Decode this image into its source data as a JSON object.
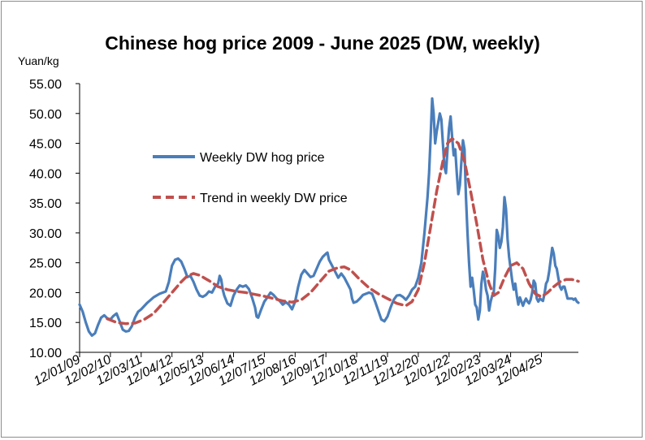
{
  "chart_data": {
    "type": "line",
    "title": "Chinese hog price 2009 - June 2025 (DW, weekly)",
    "ylabel": "Yuan/kg",
    "xlabel": "",
    "ylim": [
      10,
      55
    ],
    "yticks": [
      "10.00",
      "15.00",
      "20.00",
      "25.00",
      "30.00",
      "35.00",
      "40.00",
      "45.00",
      "50.00",
      "55.00"
    ],
    "xticks": [
      "12/01/09",
      "12/02/10",
      "12/03/11",
      "12/04/12",
      "12/05/13",
      "12/06/14",
      "12/07/15",
      "12/08/16",
      "12/09/17",
      "12/10/18",
      "12/11/19",
      "12/12/20",
      "12/01/22",
      "12/02/23",
      "12/03/24",
      "12/04/25"
    ],
    "x_range": [
      0,
      16.2
    ],
    "legend_position": "left-center",
    "grid": false,
    "series": [
      {
        "name": "Weekly DW hog price",
        "color": "#4a7ebb",
        "style": "solid",
        "points": [
          [
            0.0,
            18.0
          ],
          [
            0.1,
            16.8
          ],
          [
            0.2,
            15.0
          ],
          [
            0.3,
            13.5
          ],
          [
            0.4,
            12.8
          ],
          [
            0.5,
            13.2
          ],
          [
            0.6,
            14.6
          ],
          [
            0.7,
            15.8
          ],
          [
            0.8,
            16.2
          ],
          [
            0.9,
            15.7
          ],
          [
            1.0,
            15.5
          ],
          [
            1.1,
            16.1
          ],
          [
            1.2,
            16.5
          ],
          [
            1.3,
            15.2
          ],
          [
            1.4,
            13.8
          ],
          [
            1.5,
            13.5
          ],
          [
            1.6,
            13.6
          ],
          [
            1.7,
            14.4
          ],
          [
            1.8,
            15.8
          ],
          [
            1.9,
            16.8
          ],
          [
            2.0,
            17.2
          ],
          [
            2.2,
            18.3
          ],
          [
            2.4,
            19.2
          ],
          [
            2.6,
            19.8
          ],
          [
            2.8,
            20.2
          ],
          [
            2.9,
            21.8
          ],
          [
            3.0,
            24.5
          ],
          [
            3.1,
            25.5
          ],
          [
            3.2,
            25.7
          ],
          [
            3.3,
            25.2
          ],
          [
            3.4,
            24.0
          ],
          [
            3.5,
            22.6
          ],
          [
            3.6,
            22.8
          ],
          [
            3.7,
            21.8
          ],
          [
            3.8,
            20.5
          ],
          [
            3.9,
            19.5
          ],
          [
            4.0,
            19.3
          ],
          [
            4.1,
            19.6
          ],
          [
            4.2,
            20.2
          ],
          [
            4.3,
            20.0
          ],
          [
            4.4,
            21.0
          ],
          [
            4.5,
            21.5
          ],
          [
            4.55,
            22.8
          ],
          [
            4.6,
            22.2
          ],
          [
            4.65,
            20.5
          ],
          [
            4.7,
            19.5
          ],
          [
            4.8,
            18.2
          ],
          [
            4.9,
            17.8
          ],
          [
            5.0,
            19.5
          ],
          [
            5.1,
            20.5
          ],
          [
            5.2,
            21.2
          ],
          [
            5.3,
            21.0
          ],
          [
            5.4,
            21.2
          ],
          [
            5.5,
            20.6
          ],
          [
            5.6,
            19.2
          ],
          [
            5.7,
            17.5
          ],
          [
            5.75,
            16.0
          ],
          [
            5.8,
            15.8
          ],
          [
            5.9,
            17.2
          ],
          [
            6.0,
            18.5
          ],
          [
            6.1,
            19.2
          ],
          [
            6.2,
            20.0
          ],
          [
            6.3,
            19.6
          ],
          [
            6.4,
            19.0
          ],
          [
            6.5,
            18.6
          ],
          [
            6.6,
            18.0
          ],
          [
            6.7,
            18.4
          ],
          [
            6.8,
            18.0
          ],
          [
            6.9,
            17.2
          ],
          [
            7.0,
            18.5
          ],
          [
            7.1,
            21.0
          ],
          [
            7.2,
            23.0
          ],
          [
            7.3,
            23.8
          ],
          [
            7.4,
            23.2
          ],
          [
            7.5,
            22.6
          ],
          [
            7.6,
            22.8
          ],
          [
            7.7,
            24.0
          ],
          [
            7.8,
            25.2
          ],
          [
            7.9,
            26.0
          ],
          [
            8.0,
            26.5
          ],
          [
            8.05,
            26.7
          ],
          [
            8.1,
            25.5
          ],
          [
            8.2,
            24.5
          ],
          [
            8.3,
            23.5
          ],
          [
            8.4,
            22.5
          ],
          [
            8.5,
            23.2
          ],
          [
            8.6,
            22.5
          ],
          [
            8.7,
            21.5
          ],
          [
            8.8,
            20.5
          ],
          [
            8.85,
            19.0
          ],
          [
            8.9,
            18.3
          ],
          [
            9.0,
            18.5
          ],
          [
            9.1,
            19.0
          ],
          [
            9.2,
            19.6
          ],
          [
            9.3,
            19.8
          ],
          [
            9.4,
            20.0
          ],
          [
            9.5,
            19.8
          ],
          [
            9.6,
            18.5
          ],
          [
            9.7,
            17.0
          ],
          [
            9.8,
            15.5
          ],
          [
            9.9,
            15.2
          ],
          [
            10.0,
            16.0
          ],
          [
            10.1,
            17.5
          ],
          [
            10.2,
            18.8
          ],
          [
            10.3,
            19.5
          ],
          [
            10.4,
            19.6
          ],
          [
            10.5,
            19.3
          ],
          [
            10.6,
            18.8
          ],
          [
            10.7,
            19.5
          ],
          [
            10.8,
            20.5
          ],
          [
            10.9,
            21.0
          ],
          [
            11.0,
            22.5
          ],
          [
            11.1,
            25.0
          ],
          [
            11.2,
            30.0
          ],
          [
            11.3,
            36.0
          ],
          [
            11.35,
            40.0
          ],
          [
            11.4,
            46.0
          ],
          [
            11.45,
            52.5
          ],
          [
            11.5,
            50.0
          ],
          [
            11.55,
            45.0
          ],
          [
            11.6,
            47.0
          ],
          [
            11.65,
            48.5
          ],
          [
            11.7,
            50.0
          ],
          [
            11.75,
            49.0
          ],
          [
            11.8,
            45.0
          ],
          [
            11.85,
            41.0
          ],
          [
            11.9,
            40.0
          ],
          [
            11.95,
            44.0
          ],
          [
            12.0,
            47.5
          ],
          [
            12.05,
            49.5
          ],
          [
            12.1,
            46.0
          ],
          [
            12.15,
            43.0
          ],
          [
            12.2,
            44.0
          ],
          [
            12.25,
            40.0
          ],
          [
            12.3,
            36.5
          ],
          [
            12.35,
            38.0
          ],
          [
            12.4,
            42.0
          ],
          [
            12.45,
            45.5
          ],
          [
            12.5,
            44.0
          ],
          [
            12.55,
            36.0
          ],
          [
            12.6,
            30.0
          ],
          [
            12.65,
            25.0
          ],
          [
            12.7,
            21.0
          ],
          [
            12.75,
            22.5
          ],
          [
            12.8,
            20.5
          ],
          [
            12.85,
            18.0
          ],
          [
            12.9,
            17.5
          ],
          [
            12.95,
            15.5
          ],
          [
            13.0,
            17.0
          ],
          [
            13.05,
            21.5
          ],
          [
            13.1,
            23.5
          ],
          [
            13.15,
            22.5
          ],
          [
            13.2,
            20.5
          ],
          [
            13.25,
            19.5
          ],
          [
            13.3,
            17.0
          ],
          [
            13.35,
            18.5
          ],
          [
            13.4,
            19.5
          ],
          [
            13.45,
            20.0
          ],
          [
            13.5,
            24.0
          ],
          [
            13.55,
            30.5
          ],
          [
            13.6,
            29.5
          ],
          [
            13.65,
            27.5
          ],
          [
            13.7,
            28.5
          ],
          [
            13.75,
            31.0
          ],
          [
            13.8,
            36.0
          ],
          [
            13.85,
            34.0
          ],
          [
            13.9,
            29.0
          ],
          [
            13.95,
            26.0
          ],
          [
            14.0,
            24.0
          ],
          [
            14.05,
            22.0
          ],
          [
            14.1,
            20.5
          ],
          [
            14.15,
            21.5
          ],
          [
            14.2,
            19.5
          ],
          [
            14.25,
            18.0
          ],
          [
            14.3,
            19.2
          ],
          [
            14.35,
            18.5
          ],
          [
            14.4,
            17.8
          ],
          [
            14.45,
            18.5
          ],
          [
            14.5,
            19.0
          ],
          [
            14.55,
            18.5
          ],
          [
            14.6,
            18.2
          ],
          [
            14.65,
            18.8
          ],
          [
            14.7,
            20.0
          ],
          [
            14.75,
            22.0
          ],
          [
            14.8,
            21.5
          ],
          [
            14.85,
            19.0
          ],
          [
            14.9,
            18.5
          ],
          [
            14.95,
            19.0
          ],
          [
            15.0,
            18.8
          ],
          [
            15.05,
            18.6
          ],
          [
            15.1,
            19.8
          ],
          [
            15.15,
            21.5
          ],
          [
            15.2,
            22.0
          ],
          [
            15.25,
            23.5
          ],
          [
            15.3,
            25.5
          ],
          [
            15.35,
            27.5
          ],
          [
            15.4,
            26.5
          ],
          [
            15.45,
            24.5
          ],
          [
            15.5,
            24.0
          ],
          [
            15.55,
            22.5
          ],
          [
            15.6,
            21.0
          ],
          [
            15.65,
            20.5
          ],
          [
            15.7,
            21.0
          ],
          [
            15.75,
            21.0
          ],
          [
            15.8,
            20.0
          ],
          [
            15.85,
            19.0
          ],
          [
            15.9,
            19.0
          ],
          [
            15.95,
            19.0
          ],
          [
            16.0,
            19.0
          ],
          [
            16.05,
            18.8
          ],
          [
            16.1,
            19.0
          ],
          [
            16.15,
            18.5
          ],
          [
            16.2,
            18.3
          ]
        ]
      },
      {
        "name": "Trend in weekly DW price",
        "color": "#c0504d",
        "style": "dashed",
        "points": [
          [
            0.9,
            15.6
          ],
          [
            1.2,
            15.0
          ],
          [
            1.5,
            14.8
          ],
          [
            1.8,
            14.9
          ],
          [
            2.1,
            15.5
          ],
          [
            2.4,
            16.5
          ],
          [
            2.7,
            18.2
          ],
          [
            3.0,
            20.0
          ],
          [
            3.3,
            21.8
          ],
          [
            3.5,
            22.8
          ],
          [
            3.7,
            23.2
          ],
          [
            3.9,
            22.9
          ],
          [
            4.2,
            22.0
          ],
          [
            4.5,
            21.0
          ],
          [
            4.8,
            20.5
          ],
          [
            5.1,
            20.2
          ],
          [
            5.4,
            20.0
          ],
          [
            5.7,
            19.7
          ],
          [
            6.0,
            19.4
          ],
          [
            6.3,
            19.0
          ],
          [
            6.6,
            18.6
          ],
          [
            6.9,
            18.4
          ],
          [
            7.2,
            18.8
          ],
          [
            7.5,
            20.0
          ],
          [
            7.8,
            21.8
          ],
          [
            8.1,
            23.6
          ],
          [
            8.4,
            24.2
          ],
          [
            8.6,
            24.3
          ],
          [
            8.8,
            23.8
          ],
          [
            9.1,
            22.2
          ],
          [
            9.4,
            20.8
          ],
          [
            9.7,
            19.8
          ],
          [
            10.0,
            19.0
          ],
          [
            10.3,
            18.2
          ],
          [
            10.6,
            17.8
          ],
          [
            10.8,
            18.5
          ],
          [
            11.0,
            20.5
          ],
          [
            11.2,
            25.0
          ],
          [
            11.4,
            31.0
          ],
          [
            11.6,
            37.0
          ],
          [
            11.8,
            42.0
          ],
          [
            11.95,
            45.0
          ],
          [
            12.1,
            45.8
          ],
          [
            12.3,
            45.0
          ],
          [
            12.5,
            42.0
          ],
          [
            12.7,
            37.0
          ],
          [
            12.9,
            31.5
          ],
          [
            13.1,
            25.5
          ],
          [
            13.3,
            21.5
          ],
          [
            13.45,
            19.5
          ],
          [
            13.6,
            20.0
          ],
          [
            13.8,
            22.5
          ],
          [
            14.0,
            24.5
          ],
          [
            14.2,
            25.0
          ],
          [
            14.4,
            24.0
          ],
          [
            14.6,
            21.5
          ],
          [
            14.8,
            19.8
          ],
          [
            15.0,
            19.3
          ],
          [
            15.2,
            20.0
          ],
          [
            15.4,
            21.0
          ],
          [
            15.6,
            21.8
          ],
          [
            15.8,
            22.2
          ],
          [
            16.0,
            22.2
          ],
          [
            16.2,
            21.9
          ]
        ]
      }
    ]
  }
}
